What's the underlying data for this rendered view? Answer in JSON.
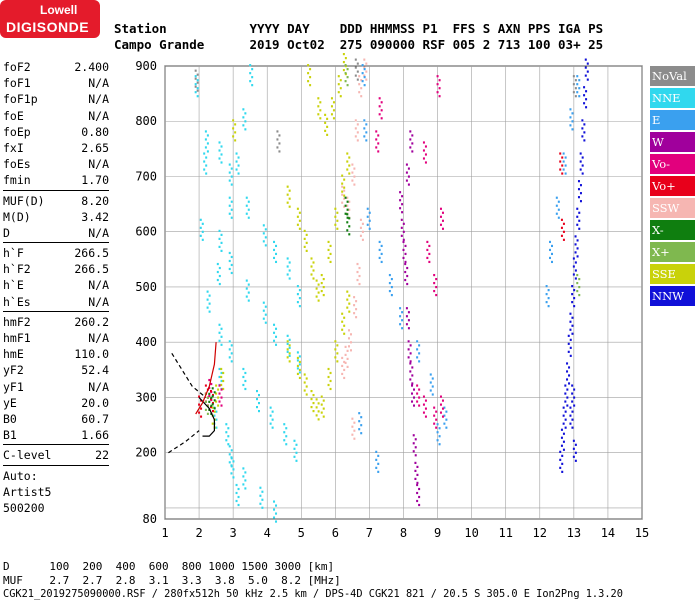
{
  "logo": {
    "line1": "Lowell",
    "line2": "DIGISONDE",
    "color": "#e41b2b"
  },
  "header": {
    "row1": "Station           YYYY DAY    DDD HHMMSS P1  FFS S AXN PPS IGA PS",
    "row2": "Campo Grande      2019 Oct02  275 090000 RSF 005 2 713 100 03+ 25"
  },
  "params": {
    "group1": [
      {
        "label": "foF2",
        "value": "2.400"
      },
      {
        "label": "foF1",
        "value": "N/A"
      },
      {
        "label": "foF1p",
        "value": "N/A"
      },
      {
        "label": "foE",
        "value": "N/A"
      },
      {
        "label": "foEp",
        "value": "0.80"
      },
      {
        "label": "fxI",
        "value": "2.65"
      },
      {
        "label": "foEs",
        "value": "N/A"
      },
      {
        "label": "fmin",
        "value": "1.70"
      }
    ],
    "group2": [
      {
        "label": "MUF(D)",
        "value": "8.20"
      },
      {
        "label": "M(D)",
        "value": "3.42"
      },
      {
        "label": "D",
        "value": "N/A"
      }
    ],
    "group3": [
      {
        "label": "h`F",
        "value": "266.5"
      },
      {
        "label": "h`F2",
        "value": "266.5"
      },
      {
        "label": "h`E",
        "value": "N/A"
      },
      {
        "label": "h`Es",
        "value": "N/A"
      }
    ],
    "group4": [
      {
        "label": "hmF2",
        "value": "260.2"
      },
      {
        "label": "hmF1",
        "value": "N/A"
      },
      {
        "label": "hmE",
        "value": "110.0"
      },
      {
        "label": "yF2",
        "value": "52.4"
      },
      {
        "label": "yF1",
        "value": "N/A"
      },
      {
        "label": "yE",
        "value": "20.0"
      },
      {
        "label": "B0",
        "value": "60.7"
      },
      {
        "label": "B1",
        "value": "1.66"
      }
    ],
    "clevel": {
      "label": "C-level",
      "value": "22"
    },
    "auto": [
      "Auto:",
      "Artist5",
      "500200"
    ]
  },
  "legend": [
    {
      "label": "NoVal",
      "color": "#8c8c8c"
    },
    {
      "label": "NNE",
      "color": "#30d8ee"
    },
    {
      "label": "E",
      "color": "#3aa0ef"
    },
    {
      "label": "W",
      "color": "#a0009c"
    },
    {
      "label": "Vo-",
      "color": "#e2007d"
    },
    {
      "label": "Vo+",
      "color": "#e8001b"
    },
    {
      "label": "SSW",
      "color": "#f6b6b2"
    },
    {
      "label": "X-",
      "color": "#0f7e0f"
    },
    {
      "label": "X+",
      "color": "#7fb84f"
    },
    {
      "label": "SSE",
      "color": "#c9d20a"
    },
    {
      "label": "NNW",
      "color": "#1010d8"
    }
  ],
  "chart_data": {
    "type": "scatter",
    "title": "",
    "xlabel": "",
    "ylabel": "",
    "xlim": [
      1,
      15
    ],
    "ylim": [
      80,
      900
    ],
    "x_ticks": [
      1,
      2,
      3,
      4,
      5,
      6,
      7,
      8,
      9,
      10,
      11,
      12,
      13,
      14,
      15
    ],
    "y_ticks": [
      80,
      100,
      200,
      300,
      400,
      500,
      600,
      700,
      800,
      900
    ],
    "y_tick_labels": [
      80,
      200,
      300,
      400,
      500,
      600,
      700,
      800,
      900
    ],
    "grid": true,
    "series": [
      {
        "name": "NNE",
        "color": "#30d8ee",
        "points": [
          [
            1.9,
            860
          ],
          [
            2.05,
            600
          ],
          [
            2.25,
            470
          ],
          [
            2.6,
            330
          ],
          [
            2.8,
            230
          ],
          [
            2.95,
            170
          ],
          [
            3.1,
            120
          ],
          [
            2.55,
            520
          ],
          [
            2.9,
            640
          ],
          [
            3.1,
            720
          ],
          [
            3.3,
            800
          ],
          [
            3.5,
            880
          ],
          [
            2.6,
            740
          ],
          [
            2.9,
            700
          ],
          [
            3.4,
            640
          ],
          [
            3.9,
            590
          ],
          [
            4.2,
            560
          ],
          [
            4.6,
            530
          ],
          [
            4.9,
            480
          ],
          [
            2.6,
            580
          ],
          [
            2.9,
            540
          ],
          [
            3.4,
            490
          ],
          [
            3.9,
            450
          ],
          [
            4.2,
            410
          ],
          [
            4.6,
            390
          ],
          [
            4.9,
            360
          ],
          [
            2.6,
            410
          ],
          [
            2.9,
            380
          ],
          [
            3.3,
            330
          ],
          [
            3.7,
            290
          ],
          [
            4.1,
            260
          ],
          [
            4.5,
            230
          ],
          [
            4.8,
            200
          ],
          [
            2.45,
            260
          ],
          [
            2.9,
            190
          ],
          [
            3.3,
            150
          ],
          [
            3.8,
            115
          ],
          [
            4.2,
            90
          ],
          [
            2.2,
            760
          ],
          [
            2.15,
            720
          ]
        ]
      },
      {
        "name": "SSE",
        "color": "#c9d20a",
        "points": [
          [
            4.6,
            660
          ],
          [
            4.9,
            620
          ],
          [
            5.1,
            580
          ],
          [
            5.3,
            530
          ],
          [
            5.45,
            490
          ],
          [
            5.6,
            500
          ],
          [
            5.8,
            560
          ],
          [
            6.0,
            620
          ],
          [
            6.2,
            680
          ],
          [
            6.35,
            720
          ],
          [
            4.6,
            380
          ],
          [
            4.9,
            350
          ],
          [
            5.1,
            320
          ],
          [
            5.3,
            290
          ],
          [
            5.45,
            275
          ],
          [
            5.6,
            280
          ],
          [
            5.8,
            330
          ],
          [
            6.0,
            380
          ],
          [
            6.2,
            430
          ],
          [
            6.35,
            470
          ],
          [
            5.2,
            880
          ],
          [
            5.5,
            820
          ],
          [
            5.7,
            790
          ],
          [
            5.9,
            820
          ],
          [
            6.1,
            860
          ],
          [
            6.25,
            900
          ],
          [
            2.4,
            260
          ],
          [
            2.5,
            300
          ],
          [
            2.65,
            330
          ],
          [
            3.0,
            780
          ]
        ]
      },
      {
        "name": "SSW",
        "color": "#f6b6b2",
        "points": [
          [
            6.2,
            660
          ],
          [
            6.35,
            640
          ],
          [
            6.5,
            700
          ],
          [
            6.6,
            780
          ],
          [
            6.7,
            860
          ],
          [
            6.4,
            400
          ],
          [
            6.55,
            460
          ],
          [
            6.65,
            520
          ],
          [
            6.75,
            600
          ],
          [
            6.3,
            370
          ],
          [
            6.2,
            350
          ],
          [
            6.85,
            890
          ],
          [
            6.5,
            240
          ]
        ]
      },
      {
        "name": "E",
        "color": "#3aa0ef",
        "points": [
          [
            6.8,
            880
          ],
          [
            6.85,
            780
          ],
          [
            6.95,
            620
          ],
          [
            7.3,
            560
          ],
          [
            7.6,
            500
          ],
          [
            7.9,
            440
          ],
          [
            8.4,
            380
          ],
          [
            8.8,
            320
          ],
          [
            6.7,
            250
          ],
          [
            7.2,
            180
          ],
          [
            9.0,
            230
          ],
          [
            9.2,
            260
          ],
          [
            12.2,
            480
          ],
          [
            12.3,
            560
          ],
          [
            12.5,
            640
          ],
          [
            12.7,
            720
          ],
          [
            12.9,
            800
          ],
          [
            13.1,
            860
          ]
        ]
      },
      {
        "name": "W",
        "color": "#a0009c",
        "points": [
          [
            7.9,
            650
          ],
          [
            7.95,
            600
          ],
          [
            8.0,
            560
          ],
          [
            8.05,
            520
          ],
          [
            8.1,
            440
          ],
          [
            8.15,
            380
          ],
          [
            8.2,
            340
          ],
          [
            8.25,
            300
          ],
          [
            8.3,
            210
          ],
          [
            8.35,
            160
          ],
          [
            8.4,
            120
          ],
          [
            8.1,
            700
          ],
          [
            8.2,
            760
          ]
        ]
      },
      {
        "name": "Vo-",
        "color": "#e2007d",
        "points": [
          [
            7.2,
            760
          ],
          [
            7.3,
            820
          ],
          [
            8.6,
            740
          ],
          [
            9.0,
            860
          ],
          [
            9.1,
            620
          ],
          [
            8.7,
            560
          ],
          [
            8.9,
            500
          ],
          [
            8.4,
            300
          ],
          [
            8.6,
            280
          ],
          [
            8.9,
            260
          ],
          [
            9.1,
            280
          ],
          [
            2.3,
            310
          ],
          [
            2.6,
            300
          ]
        ]
      },
      {
        "name": "Vo+",
        "color": "#e8001b",
        "points": [
          [
            2.2,
            300
          ],
          [
            2.35,
            290
          ],
          [
            2.0,
            280
          ],
          [
            12.6,
            720
          ],
          [
            12.65,
            600
          ]
        ]
      },
      {
        "name": "X-",
        "color": "#0f7e0f",
        "points": [
          [
            6.3,
            640
          ],
          [
            6.35,
            610
          ],
          [
            2.3,
            285
          ],
          [
            2.4,
            295
          ]
        ]
      },
      {
        "name": "X+",
        "color": "#7fb84f",
        "points": [
          [
            6.3,
            880
          ],
          [
            2.2,
            285
          ],
          [
            13.1,
            500
          ]
        ]
      },
      {
        "name": "NNW",
        "color": "#1010d8",
        "points": [
          [
            12.6,
            180
          ],
          [
            12.65,
            220
          ],
          [
            12.7,
            260
          ],
          [
            12.75,
            300
          ],
          [
            12.8,
            340
          ],
          [
            12.85,
            390
          ],
          [
            12.9,
            430
          ],
          [
            12.95,
            480
          ],
          [
            13.0,
            530
          ],
          [
            13.05,
            570
          ],
          [
            13.1,
            620
          ],
          [
            13.15,
            670
          ],
          [
            13.2,
            720
          ],
          [
            13.25,
            780
          ],
          [
            13.3,
            840
          ],
          [
            13.35,
            890
          ],
          [
            12.9,
            260
          ],
          [
            12.95,
            300
          ],
          [
            13.0,
            200
          ]
        ]
      },
      {
        "name": "NoVal",
        "color": "#8c8c8c",
        "points": [
          [
            1.9,
            870
          ],
          [
            4.3,
            760
          ],
          [
            6.6,
            890
          ],
          [
            13.0,
            860
          ]
        ]
      }
    ],
    "profile_lines": [
      {
        "color": "#000000",
        "style": "dashed",
        "points": [
          [
            1.2,
            380
          ],
          [
            1.8,
            320
          ],
          [
            2.2,
            300
          ]
        ]
      },
      {
        "color": "#000000",
        "style": "dashed",
        "points": [
          [
            1.1,
            200
          ],
          [
            1.6,
            220
          ],
          [
            2.0,
            240
          ]
        ]
      },
      {
        "color": "#000000",
        "style": "solid",
        "points": [
          [
            2.0,
            300
          ],
          [
            2.3,
            280
          ],
          [
            2.45,
            260
          ],
          [
            2.45,
            240
          ],
          [
            2.3,
            230
          ],
          [
            2.1,
            230
          ]
        ]
      },
      {
        "color": "#d00000",
        "style": "solid",
        "points": [
          [
            1.9,
            270
          ],
          [
            2.1,
            290
          ],
          [
            2.3,
            320
          ],
          [
            2.45,
            360
          ],
          [
            2.5,
            400
          ]
        ]
      }
    ]
  },
  "footer": {
    "row1": "D      100  200  400  600  800 1000 1500 3000 [km]",
    "row2": "MUF    2.7  2.7  2.8  3.1  3.3  3.8  5.0  8.2 [MHz]",
    "row3": "CGK21_2019275090000.RSF / 280fx512h 50 kHz 2.5 km / DPS-4D CGK21 821 / 20.5 S 305.0 E Ion2Png 1.3.20"
  }
}
